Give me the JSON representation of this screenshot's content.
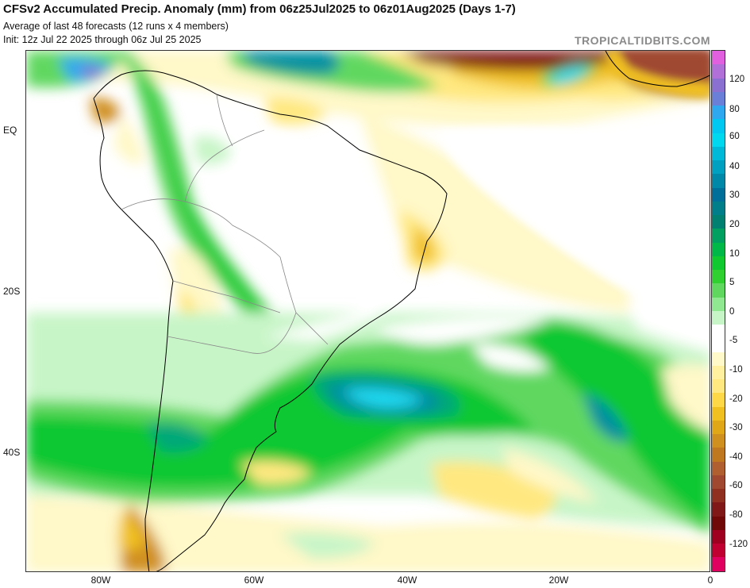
{
  "header": {
    "title": "CFSv2 Accumulated Precip. Anomaly (mm) from 06z25Jul2025 to 06z01Aug2025 (Days 1-7)",
    "subtitle1": "Average of last 48 forecasts (12 runs x 4 members)",
    "subtitle2": "Init: 12z Jul 22 2025 through 06z Jul 25 2025",
    "brand": "TROPICALTIDBITS.COM"
  },
  "axes": {
    "lat_labels": [
      "EQ",
      "20S",
      "40S"
    ],
    "lon_labels": [
      "80W",
      "60W",
      "40W",
      "20W",
      "0"
    ]
  },
  "colorbar": {
    "labels": [
      "120",
      "80",
      "60",
      "40",
      "30",
      "20",
      "10",
      "5",
      "0",
      "-5",
      "-10",
      "-20",
      "-30",
      "-40",
      "-60",
      "-80",
      "-120"
    ],
    "colors": [
      "#e060e0",
      "#b070d8",
      "#8a70d0",
      "#6a80d8",
      "#30a8f0",
      "#00c8f0",
      "#00d8f0",
      "#00b8d8",
      "#00a0c0",
      "#0088a8",
      "#00709a",
      "#007f8a",
      "#008070",
      "#00a060",
      "#00b848",
      "#10c830",
      "#30d030",
      "#60d860",
      "#90e890",
      "#c8f5c8",
      "#ffffff",
      "#ffffff",
      "#fff8c8",
      "#fff0a0",
      "#ffe880",
      "#ffd848",
      "#f0c020",
      "#e0a818",
      "#d09020",
      "#c07820",
      "#b06030",
      "#a04830",
      "#903020",
      "#801818",
      "#700808",
      "#a00020",
      "#c00030",
      "#e00060"
    ]
  },
  "map_colors": {
    "ocean_bg": "#ffffff",
    "coast": "#000000",
    "borders": "#888888",
    "wet_light": "#c8f5c8",
    "wet_mid": "#60d860",
    "wet_strong": "#10c830",
    "wet_deep": "#00a878",
    "wet_teal": "#0090a0",
    "wet_cyan": "#20d8f0",
    "wet_blue": "#30a8f0",
    "wet_purple": "#8a70d0",
    "dry_light": "#fff8c8",
    "dry_mid": "#ffe880",
    "dry_gold": "#f0c020",
    "dry_orange": "#d09020",
    "dry_brown": "#a04830",
    "dry_darkred": "#801818"
  }
}
